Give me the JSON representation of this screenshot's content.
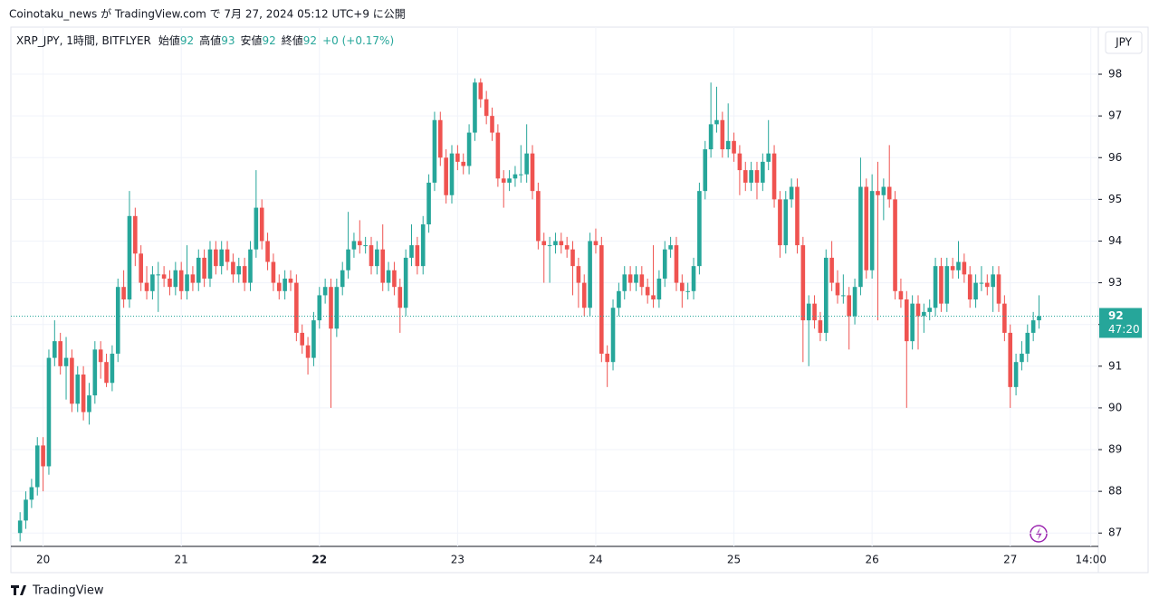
{
  "header": {
    "text": "Coinotaku_news が TradingView.com で 7月 27, 2024 05:12 UTC+9 に公開"
  },
  "chart_data": {
    "type": "candlestick",
    "symbol": "XRP_JPY, 1時間, BITFLYER",
    "legend": [
      {
        "label": "始値",
        "value": "92"
      },
      {
        "label": "高値",
        "value": "93"
      },
      {
        "label": "安値",
        "value": "92"
      },
      {
        "label": "終値",
        "value": "92"
      }
    ],
    "change": "+0 (+0.17%)",
    "currency": "JPY",
    "up_color": "#26a69a",
    "down_color": "#ef5350",
    "grid": true,
    "ylim": [
      86.68,
      99.02
    ],
    "yticks": [
      87,
      88,
      89,
      90,
      91,
      92,
      93,
      94,
      95,
      96,
      97,
      98
    ],
    "xlim": [
      -1.6,
      187.3
    ],
    "xticks": [
      {
        "value": 4,
        "label": "20"
      },
      {
        "value": 28,
        "label": "21"
      },
      {
        "value": 52,
        "label": "22"
      },
      {
        "value": 76,
        "label": "23"
      },
      {
        "value": 100,
        "label": "24"
      },
      {
        "value": 124,
        "label": "25"
      },
      {
        "value": 148,
        "label": "26"
      },
      {
        "value": 172,
        "label": "27"
      },
      {
        "value": 186,
        "label": "14:00"
      }
    ],
    "last_price": {
      "value": 92.2,
      "label": "92"
    },
    "countdown": "47:20",
    "ohlc": [
      [
        87.0,
        87.5,
        86.8,
        87.3
      ],
      [
        87.3,
        88.0,
        87.1,
        87.8
      ],
      [
        87.8,
        88.3,
        87.6,
        88.1
      ],
      [
        88.1,
        89.3,
        87.9,
        89.1
      ],
      [
        89.1,
        89.3,
        88.0,
        88.6
      ],
      [
        88.6,
        91.4,
        88.4,
        91.2
      ],
      [
        91.2,
        92.1,
        91.0,
        91.6
      ],
      [
        91.6,
        91.8,
        90.8,
        91.0
      ],
      [
        91.0,
        91.7,
        90.2,
        91.2
      ],
      [
        91.2,
        91.4,
        89.9,
        90.1
      ],
      [
        90.1,
        91.0,
        89.9,
        90.8
      ],
      [
        90.8,
        91.0,
        89.7,
        89.9
      ],
      [
        89.9,
        90.6,
        89.6,
        90.3
      ],
      [
        90.3,
        91.6,
        90.1,
        91.4
      ],
      [
        91.4,
        91.6,
        90.7,
        91.1
      ],
      [
        91.1,
        91.3,
        90.5,
        90.6
      ],
      [
        90.6,
        91.5,
        90.4,
        91.3
      ],
      [
        91.3,
        93.1,
        91.1,
        92.9
      ],
      [
        92.9,
        93.3,
        92.4,
        92.6
      ],
      [
        92.6,
        95.2,
        92.4,
        94.6
      ],
      [
        94.6,
        94.8,
        93.4,
        93.7
      ],
      [
        93.7,
        93.9,
        92.8,
        93.0
      ],
      [
        93.0,
        93.4,
        92.6,
        92.8
      ],
      [
        92.8,
        93.4,
        92.6,
        93.2
      ],
      [
        93.2,
        93.5,
        92.3,
        93.2
      ],
      [
        93.2,
        93.4,
        92.9,
        93.1
      ],
      [
        93.1,
        93.3,
        92.7,
        92.9
      ],
      [
        92.9,
        93.5,
        92.7,
        93.3
      ],
      [
        93.3,
        93.5,
        92.6,
        92.8
      ],
      [
        92.8,
        93.9,
        92.6,
        93.2
      ],
      [
        93.2,
        93.4,
        92.8,
        93.0
      ],
      [
        93.0,
        93.8,
        92.8,
        93.6
      ],
      [
        93.6,
        93.8,
        92.9,
        93.1
      ],
      [
        93.1,
        94.0,
        92.9,
        93.8
      ],
      [
        93.8,
        94.0,
        93.2,
        93.4
      ],
      [
        93.4,
        94.0,
        93.2,
        93.8
      ],
      [
        93.8,
        94.0,
        93.3,
        93.5
      ],
      [
        93.5,
        93.7,
        93.0,
        93.2
      ],
      [
        93.2,
        93.6,
        93.0,
        93.4
      ],
      [
        93.4,
        93.6,
        92.8,
        93.0
      ],
      [
        93.0,
        94.0,
        92.8,
        93.8
      ],
      [
        93.8,
        95.7,
        93.6,
        94.8
      ],
      [
        94.8,
        95.0,
        93.8,
        94.0
      ],
      [
        94.0,
        94.2,
        93.3,
        93.5
      ],
      [
        93.5,
        93.7,
        92.8,
        93.0
      ],
      [
        93.0,
        93.2,
        92.6,
        92.8
      ],
      [
        92.8,
        93.3,
        92.6,
        93.1
      ],
      [
        93.1,
        93.3,
        92.8,
        93.0
      ],
      [
        93.0,
        93.2,
        91.6,
        91.8
      ],
      [
        91.8,
        92.0,
        91.3,
        91.5
      ],
      [
        91.5,
        91.7,
        90.8,
        91.2
      ],
      [
        91.2,
        92.3,
        91.0,
        92.1
      ],
      [
        92.1,
        92.9,
        91.9,
        92.7
      ],
      [
        92.7,
        93.1,
        92.5,
        92.9
      ],
      [
        92.9,
        93.1,
        90.0,
        91.9
      ],
      [
        91.9,
        93.1,
        91.7,
        92.9
      ],
      [
        92.9,
        93.5,
        92.7,
        93.3
      ],
      [
        93.3,
        94.7,
        93.1,
        93.8
      ],
      [
        93.8,
        94.2,
        93.6,
        94.0
      ],
      [
        94.0,
        94.5,
        93.7,
        93.9
      ],
      [
        93.9,
        94.1,
        93.7,
        93.9
      ],
      [
        93.9,
        94.1,
        93.2,
        93.4
      ],
      [
        93.4,
        94.0,
        93.2,
        93.8
      ],
      [
        93.8,
        94.4,
        92.8,
        93.0
      ],
      [
        93.0,
        93.5,
        92.8,
        93.3
      ],
      [
        93.3,
        93.5,
        92.7,
        92.9
      ],
      [
        92.9,
        93.1,
        91.8,
        92.4
      ],
      [
        92.4,
        93.8,
        92.2,
        93.6
      ],
      [
        93.6,
        94.4,
        93.4,
        93.9
      ],
      [
        93.9,
        94.1,
        93.2,
        93.4
      ],
      [
        93.4,
        94.6,
        93.2,
        94.4
      ],
      [
        94.4,
        95.6,
        94.2,
        95.4
      ],
      [
        95.4,
        97.1,
        95.2,
        96.9
      ],
      [
        96.9,
        97.1,
        95.8,
        96.0
      ],
      [
        96.0,
        96.2,
        94.9,
        95.1
      ],
      [
        95.1,
        96.3,
        94.9,
        96.1
      ],
      [
        96.1,
        96.3,
        95.7,
        95.9
      ],
      [
        95.9,
        96.1,
        95.6,
        95.8
      ],
      [
        95.8,
        96.8,
        95.6,
        96.6
      ],
      [
        96.6,
        97.9,
        96.4,
        97.8
      ],
      [
        97.8,
        97.9,
        97.2,
        97.4
      ],
      [
        97.4,
        97.6,
        96.8,
        97.0
      ],
      [
        97.0,
        97.2,
        96.4,
        96.6
      ],
      [
        96.6,
        96.8,
        95.3,
        95.5
      ],
      [
        95.5,
        95.7,
        94.8,
        95.4
      ],
      [
        95.4,
        95.7,
        95.2,
        95.5
      ],
      [
        95.5,
        95.8,
        95.3,
        95.6
      ],
      [
        95.6,
        96.3,
        95.4,
        95.6
      ],
      [
        95.6,
        96.8,
        95.4,
        96.1
      ],
      [
        96.1,
        96.3,
        95.0,
        95.2
      ],
      [
        95.2,
        95.4,
        93.8,
        94.0
      ],
      [
        94.0,
        94.2,
        93.0,
        93.9
      ],
      [
        93.9,
        94.1,
        93.0,
        93.9
      ],
      [
        93.9,
        94.2,
        93.7,
        94.0
      ],
      [
        94.0,
        94.2,
        93.7,
        93.9
      ],
      [
        93.9,
        94.1,
        93.6,
        93.8
      ],
      [
        93.8,
        94.0,
        92.7,
        93.4
      ],
      [
        93.4,
        93.6,
        92.4,
        93.0
      ],
      [
        93.0,
        93.2,
        92.2,
        92.4
      ],
      [
        92.4,
        94.2,
        92.2,
        94.0
      ],
      [
        94.0,
        94.3,
        93.7,
        93.9
      ],
      [
        93.9,
        94.1,
        91.1,
        91.3
      ],
      [
        91.3,
        91.5,
        90.5,
        91.1
      ],
      [
        91.1,
        92.6,
        90.9,
        92.4
      ],
      [
        92.4,
        93.0,
        92.2,
        92.8
      ],
      [
        92.8,
        93.4,
        92.6,
        93.2
      ],
      [
        93.2,
        93.4,
        92.8,
        93.0
      ],
      [
        93.0,
        93.4,
        92.8,
        93.2
      ],
      [
        93.2,
        93.4,
        92.7,
        92.9
      ],
      [
        92.9,
        93.1,
        92.5,
        92.7
      ],
      [
        92.7,
        93.9,
        92.4,
        92.6
      ],
      [
        92.6,
        93.3,
        92.4,
        93.1
      ],
      [
        93.1,
        94.0,
        92.9,
        93.8
      ],
      [
        93.8,
        94.1,
        93.6,
        93.9
      ],
      [
        93.9,
        94.1,
        92.8,
        93.0
      ],
      [
        93.0,
        93.2,
        92.4,
        92.8
      ],
      [
        92.8,
        93.0,
        92.6,
        92.8
      ],
      [
        92.8,
        93.6,
        92.6,
        93.4
      ],
      [
        93.4,
        95.4,
        93.2,
        95.2
      ],
      [
        95.2,
        96.4,
        95.0,
        96.2
      ],
      [
        96.2,
        97.8,
        96.0,
        96.8
      ],
      [
        96.8,
        97.7,
        96.6,
        96.9
      ],
      [
        96.9,
        97.1,
        96.0,
        96.2
      ],
      [
        96.2,
        97.3,
        96.0,
        96.4
      ],
      [
        96.4,
        96.6,
        95.9,
        96.1
      ],
      [
        96.1,
        96.3,
        95.1,
        95.7
      ],
      [
        95.7,
        95.9,
        95.2,
        95.4
      ],
      [
        95.4,
        95.9,
        95.2,
        95.7
      ],
      [
        95.7,
        95.9,
        95.0,
        95.4
      ],
      [
        95.4,
        96.1,
        95.2,
        95.9
      ],
      [
        95.9,
        96.9,
        95.7,
        96.1
      ],
      [
        96.1,
        96.3,
        94.8,
        95.0
      ],
      [
        95.0,
        95.2,
        93.6,
        93.9
      ],
      [
        93.9,
        95.2,
        93.7,
        95.0
      ],
      [
        95.0,
        95.5,
        94.8,
        95.3
      ],
      [
        95.3,
        95.5,
        93.7,
        93.9
      ],
      [
        93.9,
        94.1,
        91.1,
        92.1
      ],
      [
        92.1,
        92.7,
        91.0,
        92.5
      ],
      [
        92.5,
        92.7,
        91.9,
        92.1
      ],
      [
        92.1,
        92.3,
        91.6,
        91.8
      ],
      [
        91.8,
        93.8,
        91.6,
        93.6
      ],
      [
        93.6,
        94.0,
        92.8,
        93.0
      ],
      [
        93.0,
        93.3,
        92.5,
        92.7
      ],
      [
        92.7,
        93.2,
        92.5,
        92.7
      ],
      [
        92.7,
        92.9,
        91.4,
        92.2
      ],
      [
        92.2,
        93.1,
        92.0,
        92.9
      ],
      [
        92.9,
        96.0,
        92.7,
        95.3
      ],
      [
        95.3,
        95.5,
        93.1,
        93.3
      ],
      [
        93.3,
        95.6,
        93.1,
        95.2
      ],
      [
        95.2,
        95.9,
        92.1,
        95.1
      ],
      [
        95.1,
        95.5,
        94.5,
        95.3
      ],
      [
        95.3,
        96.3,
        94.8,
        95.0
      ],
      [
        95.0,
        95.2,
        92.6,
        92.8
      ],
      [
        92.8,
        93.1,
        92.4,
        92.6
      ],
      [
        92.6,
        92.8,
        90.0,
        91.6
      ],
      [
        91.6,
        92.7,
        91.4,
        92.5
      ],
      [
        92.5,
        92.7,
        91.4,
        92.2
      ],
      [
        92.2,
        92.5,
        91.8,
        92.3
      ],
      [
        92.3,
        92.6,
        92.1,
        92.4
      ],
      [
        92.4,
        93.6,
        92.2,
        93.4
      ],
      [
        93.4,
        93.6,
        92.3,
        92.5
      ],
      [
        92.5,
        93.6,
        92.3,
        93.4
      ],
      [
        93.4,
        93.6,
        93.1,
        93.3
      ],
      [
        93.3,
        94.0,
        93.1,
        93.5
      ],
      [
        93.5,
        93.7,
        93.0,
        93.2
      ],
      [
        93.2,
        93.4,
        92.4,
        92.6
      ],
      [
        92.6,
        93.2,
        92.4,
        93.0
      ],
      [
        93.0,
        93.4,
        92.8,
        93.0
      ],
      [
        93.0,
        93.2,
        92.7,
        92.9
      ],
      [
        92.9,
        93.4,
        92.3,
        93.2
      ],
      [
        93.2,
        93.4,
        92.3,
        92.5
      ],
      [
        92.5,
        92.7,
        91.6,
        91.8
      ],
      [
        91.8,
        92.0,
        90.0,
        90.5
      ],
      [
        90.5,
        91.3,
        90.3,
        91.1
      ],
      [
        91.1,
        91.6,
        90.9,
        91.3
      ],
      [
        91.3,
        92.0,
        91.1,
        91.8
      ],
      [
        91.8,
        92.3,
        91.6,
        92.1
      ],
      [
        92.1,
        92.7,
        91.9,
        92.2
      ]
    ]
  },
  "footer": {
    "brand": "TradingView"
  }
}
